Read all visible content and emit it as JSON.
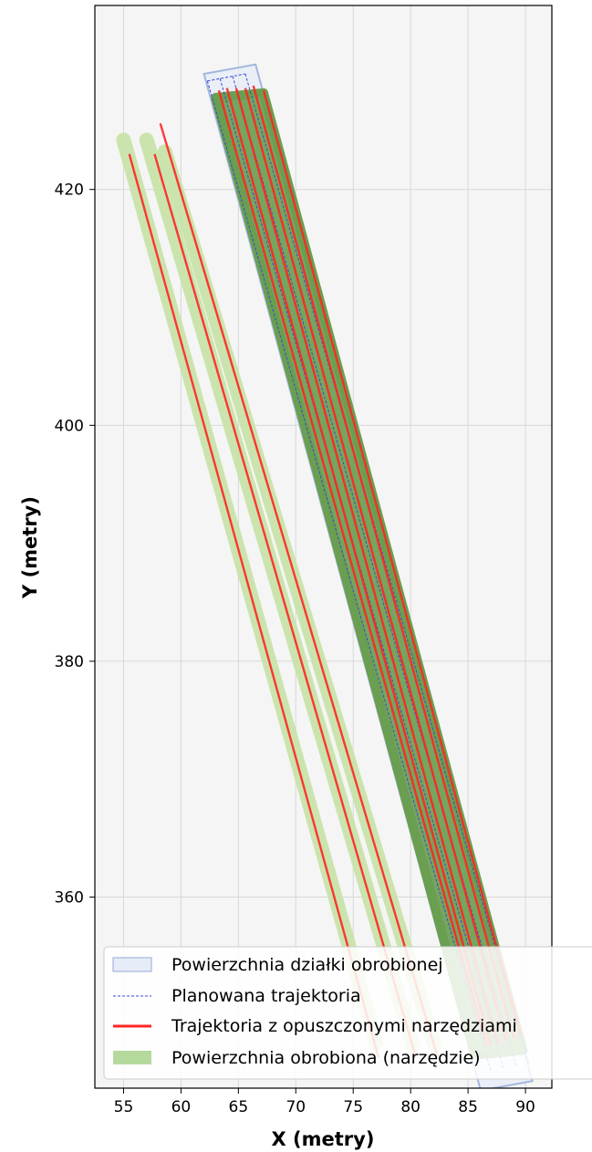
{
  "chart_data": {
    "type": "line",
    "title": "",
    "xlabel": "X (metry)",
    "ylabel": "Y (metry)",
    "xlim": [
      52.5,
      92.3
    ],
    "ylim": [
      343.8,
      435.6
    ],
    "xticks": [
      55,
      60,
      65,
      70,
      75,
      80,
      85,
      90
    ],
    "yticks": [
      360,
      380,
      400,
      420
    ],
    "grid": true,
    "legend_position": "lower-right",
    "colors": {
      "plot_area": "#f5f5f5",
      "grid": "#d8d8d8",
      "boundary_fill": "#e6ecf8",
      "boundary_stroke": "#a4b6de",
      "planned": "#3848d8",
      "tool_down": "#ff2424",
      "coverage_light": "#c6e2a6",
      "coverage_dark": "#6a9e50",
      "legend_coverage": "#b5d99c"
    },
    "legend": [
      {
        "label": "Powierzchnia działki obrobionej",
        "kind": "patch"
      },
      {
        "label": "Planowana trajektoria",
        "kind": "dashed"
      },
      {
        "label": "Trajektoria z opuszczonymi narzędziami",
        "kind": "line"
      },
      {
        "label": "Powierzchnia obrobiona (narzędzie)",
        "kind": "band"
      }
    ],
    "series": [
      {
        "name": "Powierzchnia działki obrobionej",
        "kind": "polygon",
        "points": [
          [
            62.0,
            429.8
          ],
          [
            66.5,
            430.6
          ],
          [
            90.6,
            344.4
          ],
          [
            86.1,
            343.6
          ]
        ]
      },
      {
        "name": "Planowana trajektoria",
        "kind": "planned",
        "lines": [
          {
            "x": [
              62.3,
              87.0
            ],
            "y": [
              429.2,
              345.2
            ]
          },
          {
            "x": [
              63.4,
              88.1
            ],
            "y": [
              429.4,
              345.4
            ]
          },
          {
            "x": [
              64.5,
              89.2
            ],
            "y": [
              429.6,
              345.6
            ]
          },
          {
            "x": [
              65.6,
              90.3
            ],
            "y": [
              429.8,
              345.8
            ]
          }
        ],
        "top_connector": {
          "x": [
            62.3,
            65.6
          ],
          "y": [
            429.2,
            429.8
          ]
        }
      },
      {
        "name": "Powierzchnia obrobiona (narzędzie)",
        "kind": "coverage",
        "light_strips": [
          {
            "x": [
              55.0,
              77.0
            ],
            "y": [
              424.2,
              347.6
            ]
          },
          {
            "x": [
              57.0,
              80.2
            ],
            "y": [
              424.2,
              347.4
            ]
          },
          {
            "x": [
              58.6,
              82.1
            ],
            "y": [
              423.2,
              347.4
            ]
          }
        ],
        "dense_band": [
          [
            63.0,
            427.8
          ],
          [
            67.2,
            428.2
          ],
          [
            89.8,
            347.0
          ],
          [
            85.6,
            346.6
          ]
        ]
      },
      {
        "name": "Trajektoria z opuszczonymi narzędziami",
        "kind": "tool-down",
        "lines": [
          {
            "x": [
              55.5,
              77.2
            ],
            "y": [
              423.0,
              346.4
            ]
          },
          {
            "x": [
              57.7,
              80.4
            ],
            "y": [
              423.0,
              346.6
            ]
          },
          {
            "x": [
              58.2,
              82.3
            ],
            "y": [
              425.6,
              346.6
            ]
          },
          {
            "x": [
              63.3,
              86.6
            ],
            "y": [
              428.4,
              347.4
            ]
          },
          {
            "x": [
              64.0,
              87.0
            ],
            "y": [
              428.6,
              347.4
            ]
          },
          {
            "x": [
              64.8,
              87.6
            ],
            "y": [
              428.6,
              347.6
            ]
          },
          {
            "x": [
              65.6,
              88.3
            ],
            "y": [
              428.6,
              347.8
            ]
          },
          {
            "x": [
              66.3,
              89.0
            ],
            "y": [
              428.8,
              348.0
            ]
          },
          {
            "x": [
              67.2,
              89.6
            ],
            "y": [
              428.4,
              348.2
            ]
          }
        ]
      }
    ]
  }
}
